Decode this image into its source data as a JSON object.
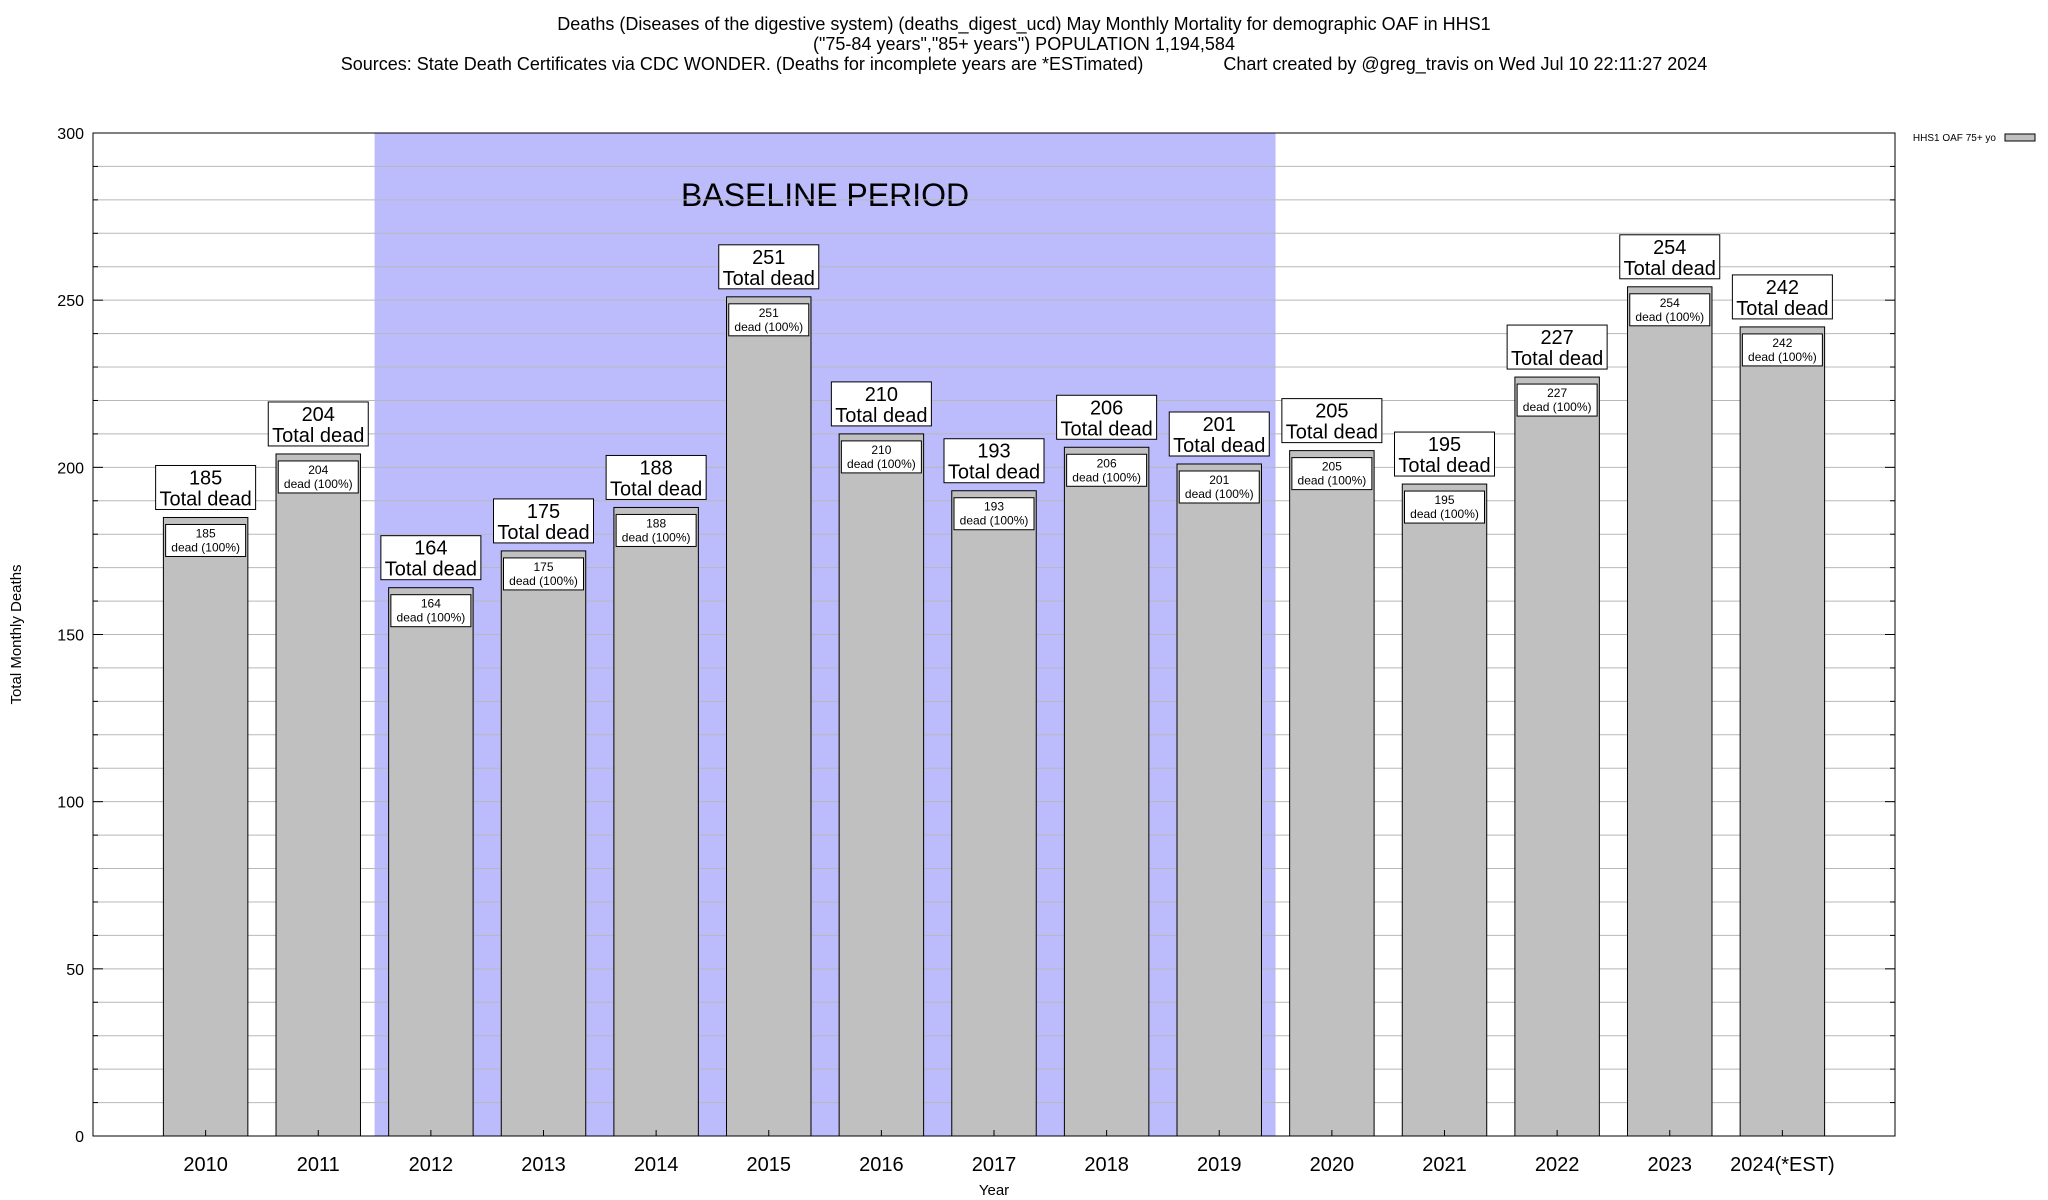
{
  "title": {
    "line1": "Deaths (Diseases of the digestive system) (deaths_digest_ucd) May Monthly Mortality for demographic OAF in HHS1",
    "line2": "(\"75-84 years\",\"85+ years\") POPULATION 1,194,584",
    "line3": "Sources: State Death Certificates via CDC WONDER. (Deaths for incomplete years are *ESTimated)                Chart created by @greg_travis on Wed Jul 10 22:11:27 2024"
  },
  "chart_data": {
    "type": "bar",
    "xlabel": "Year",
    "ylabel": "Total Monthly Deaths",
    "ylim": [
      0,
      300
    ],
    "yticks": [
      0,
      50,
      100,
      150,
      200,
      250,
      300
    ],
    "grid": "horizontal minor gridlines every 10",
    "legend_position": "top-right",
    "categories": [
      "2010",
      "2011",
      "2012",
      "2013",
      "2014",
      "2015",
      "2016",
      "2017",
      "2018",
      "2019",
      "2020",
      "2021",
      "2022",
      "2023",
      "2024(*EST)"
    ],
    "series": [
      {
        "name": "HHS1 OAF 75+ yo",
        "values": [
          185,
          204,
          164,
          175,
          188,
          251,
          210,
          193,
          206,
          201,
          205,
          195,
          227,
          254,
          242
        ],
        "color": "#c0c0c0"
      }
    ],
    "top_label_suffix": "Total dead",
    "inner_label_suffix": "dead (100%)",
    "baseline_region": {
      "label": "BASELINE PERIOD",
      "from": "2012",
      "to": "2019",
      "color": "#bcbcfc"
    }
  }
}
